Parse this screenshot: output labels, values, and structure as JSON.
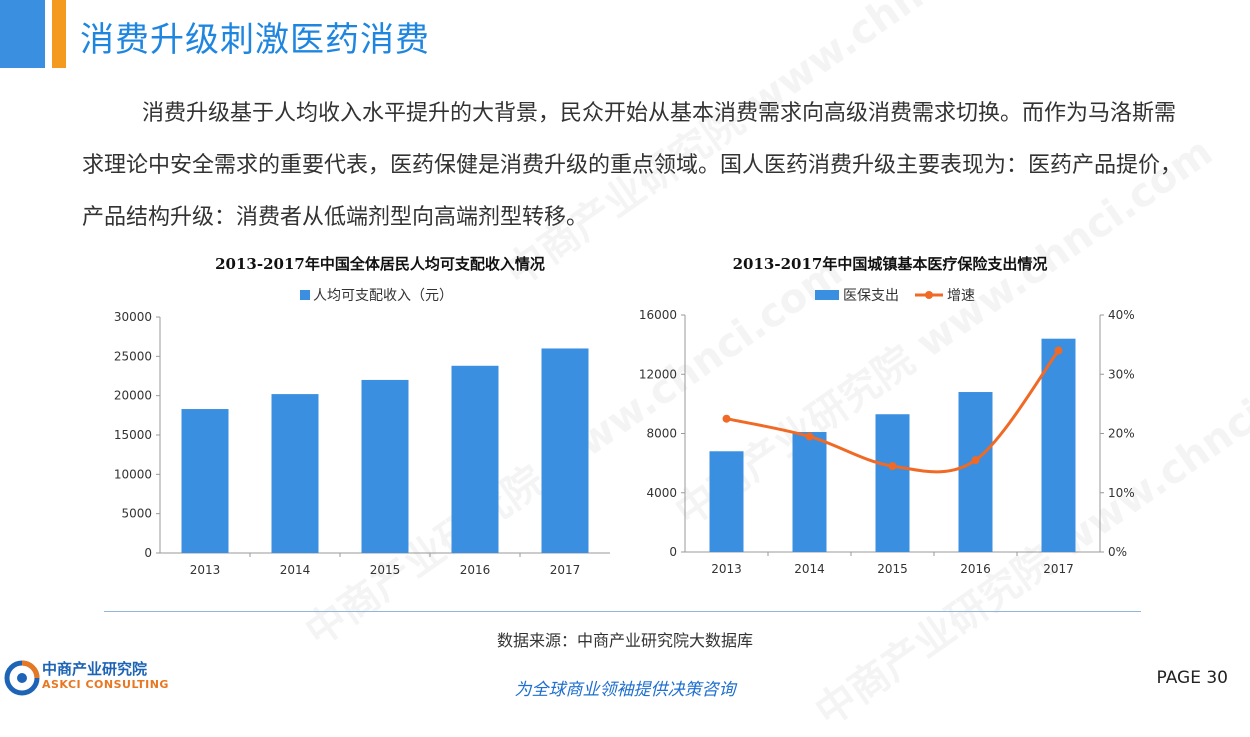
{
  "header": {
    "title": "消费升级刺激医药消费"
  },
  "body": {
    "paragraph": "消费升级基于人均收入水平提升的大背景，民众开始从基本消费需求向高级消费需求切换。而作为马洛斯需求理论中安全需求的重要代表，医药保健是消费升级的重点领域。国人医药消费升级主要表现为：医药产品提价，产品结构升级：消费者从低端剂型向高端剂型转移。"
  },
  "chart_data": [
    {
      "type": "bar",
      "title": "2013-2017年中国全体居民人均可支配收入情况",
      "categories": [
        "2013",
        "2014",
        "2015",
        "2016",
        "2017"
      ],
      "series": [
        {
          "name": "人均可支配收入（元）",
          "values": [
            18300,
            20200,
            22000,
            23800,
            26000
          ]
        }
      ],
      "ylim": [
        0,
        30000
      ],
      "yticks": [
        0,
        5000,
        10000,
        15000,
        20000,
        25000,
        30000
      ],
      "legend": "top",
      "colors": {
        "bar": "#3b8fe0"
      }
    },
    {
      "type": "bar",
      "title": "2013-2017年中国城镇基本医疗保险支出情况",
      "categories": [
        "2013",
        "2014",
        "2015",
        "2016",
        "2017"
      ],
      "series": [
        {
          "name": "医保支出",
          "type": "bar",
          "axis": "left",
          "values": [
            6800,
            8100,
            9300,
            10800,
            14400
          ]
        },
        {
          "name": "增速",
          "type": "line",
          "axis": "right",
          "values": [
            22.5,
            19.5,
            14.5,
            15.5,
            34.0
          ]
        }
      ],
      "ylim": [
        0,
        16000
      ],
      "yticks": [
        0,
        4000,
        8000,
        12000,
        16000
      ],
      "y2lim": [
        0,
        40
      ],
      "y2ticks": [
        "0%",
        "10%",
        "20%",
        "30%",
        "40%"
      ],
      "legend": "top",
      "colors": {
        "bar": "#3b8fe0",
        "line": "#f06a25"
      }
    }
  ],
  "footer": {
    "source": "数据来源：中商产业研究院大数据库",
    "logo_cn": "中商产业研究院",
    "logo_en": "ASKCI CONSULTING",
    "slogan": "为全球商业领袖提供决策咨询",
    "page": "PAGE  30"
  },
  "watermark": "中商产业研究院 www.chnci.com"
}
